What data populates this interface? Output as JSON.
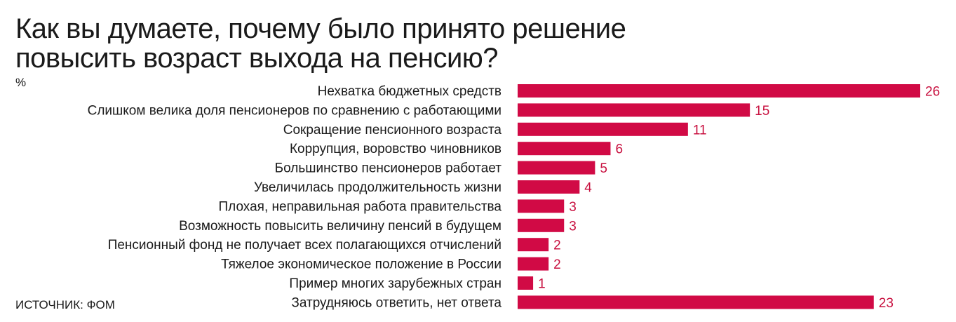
{
  "header": {
    "title_line1": "Как вы думаете, почему было принято решение",
    "title_line2": "повысить возраст выхода на пенсию?",
    "unit": "%"
  },
  "footer": {
    "source": "ИСТОЧНИК: ФОМ"
  },
  "colors": {
    "bar": "#d10a45",
    "value_text": "#c8103f",
    "label_text": "#1a1a1a"
  },
  "chart_data": {
    "type": "bar",
    "orientation": "horizontal",
    "title": "Как вы думаете, почему было принято решение повысить возраст выхода на пенсию?",
    "unit": "%",
    "categories": [
      "Нехватка бюджетных средств",
      "Слишком велика доля пенсионеров по сравнению с работающими",
      "Сокращение пенсионного возраста",
      "Коррупция, воровство чиновников",
      "Большинство пенсионеров работает",
      "Увеличилась продолжительность жизни",
      "Плохая, неправильная работа правительства",
      "Возможность повысить величину пенсий в будущем",
      "Пенсионный фонд не получает всех полагающихся отчислений",
      "Тяжелое экономическое положение в России",
      "Пример многих зарубежных стран",
      "Затрудняюсь ответить, нет ответа"
    ],
    "values": [
      26,
      15,
      11,
      6,
      5,
      4,
      3,
      3,
      2,
      2,
      1,
      23
    ],
    "grid": false,
    "legend": "none"
  }
}
